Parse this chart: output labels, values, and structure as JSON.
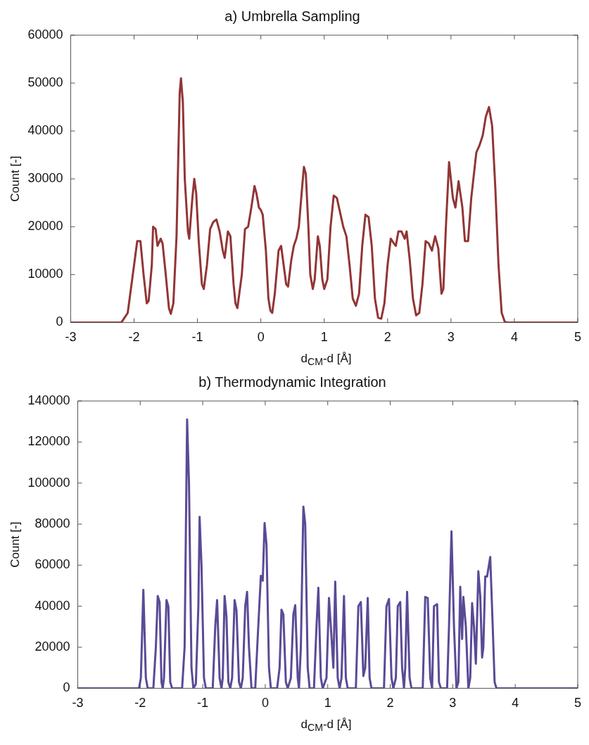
{
  "chart_data": [
    {
      "type": "line",
      "title": "a) Umbrella Sampling",
      "xlabel": "d$_{CM}$-d [Å]",
      "ylabel": "Count [-]",
      "xlim": [
        -3,
        5
      ],
      "xticks": [
        -3,
        -2,
        -1,
        0,
        1,
        2,
        3,
        4,
        5
      ],
      "ylim": [
        0,
        60000
      ],
      "yticks": [
        0,
        10000,
        20000,
        30000,
        40000,
        50000,
        60000
      ],
      "series": [
        {
          "color": "#923535",
          "x": [
            -3,
            -2.2,
            -2.1,
            -2.0,
            -1.95,
            -1.9,
            -1.85,
            -1.8,
            -1.77,
            -1.72,
            -1.7,
            -1.66,
            -1.63,
            -1.58,
            -1.55,
            -1.5,
            -1.45,
            -1.42,
            -1.38,
            -1.33,
            -1.28,
            -1.26,
            -1.23,
            -1.2,
            -1.15,
            -1.13,
            -1.08,
            -1.05,
            -1.02,
            -0.98,
            -0.93,
            -0.9,
            -0.85,
            -0.8,
            -0.75,
            -0.7,
            -0.65,
            -0.6,
            -0.57,
            -0.52,
            -0.48,
            -0.43,
            -0.4,
            -0.37,
            -0.3,
            -0.25,
            -0.2,
            -0.15,
            -0.1,
            -0.07,
            -0.03,
            0.0,
            0.03,
            0.08,
            0.12,
            0.15,
            0.18,
            0.22,
            0.28,
            0.32,
            0.37,
            0.4,
            0.43,
            0.48,
            0.52,
            0.56,
            0.6,
            0.65,
            0.68,
            0.71,
            0.75,
            0.78,
            0.82,
            0.85,
            0.9,
            0.93,
            0.97,
            1.0,
            1.05,
            1.1,
            1.15,
            1.2,
            1.25,
            1.3,
            1.35,
            1.4,
            1.45,
            1.5,
            1.55,
            1.6,
            1.65,
            1.7,
            1.75,
            1.8,
            1.85,
            1.9,
            1.95,
            2.0,
            2.05,
            2.1,
            2.13,
            2.17,
            2.22,
            2.27,
            2.3,
            2.35,
            2.4,
            2.45,
            2.5,
            2.55,
            2.6,
            2.65,
            2.7,
            2.75,
            2.8,
            2.85,
            2.88,
            2.92,
            2.97,
            3.03,
            3.07,
            3.12,
            3.18,
            3.22,
            3.27,
            3.32,
            3.4,
            3.45,
            3.5,
            3.55,
            3.6,
            3.65,
            3.7,
            3.75,
            3.8,
            3.85,
            3.9,
            5
          ],
          "values": [
            0,
            0,
            2000,
            12000,
            17000,
            17000,
            10000,
            4000,
            4500,
            12000,
            20000,
            19500,
            16000,
            17500,
            16500,
            10000,
            3000,
            1800,
            4000,
            18000,
            48000,
            51000,
            46000,
            30000,
            19000,
            17500,
            26000,
            30000,
            27000,
            17000,
            8000,
            7000,
            12000,
            19500,
            21000,
            21500,
            19000,
            15000,
            13500,
            19000,
            18000,
            8000,
            4000,
            3000,
            10000,
            19500,
            20000,
            24000,
            28500,
            27000,
            24000,
            23500,
            22500,
            15000,
            5000,
            2500,
            2000,
            6000,
            15000,
            16000,
            11000,
            8000,
            7500,
            13000,
            16000,
            17500,
            20000,
            28000,
            32500,
            31000,
            20000,
            10000,
            7000,
            9000,
            18000,
            16000,
            9000,
            7000,
            9000,
            20000,
            26500,
            26000,
            23000,
            20000,
            18000,
            12000,
            5000,
            3500,
            6000,
            16000,
            22500,
            22000,
            16000,
            5000,
            1000,
            800,
            4000,
            12000,
            17500,
            16500,
            16000,
            19000,
            19000,
            17500,
            19000,
            13000,
            5000,
            1500,
            2000,
            8000,
            17000,
            16500,
            15000,
            18000,
            15500,
            6000,
            7000,
            20000,
            33500,
            26000,
            24000,
            29500,
            24000,
            17000,
            17000,
            26000,
            35500,
            37000,
            39000,
            43000,
            45000,
            41000,
            28000,
            12000,
            2000,
            100,
            0,
            0
          ]
        }
      ]
    },
    {
      "type": "line",
      "title": "b) Thermodynamic Integration",
      "xlabel": "d$_{CM}$-d [Å]",
      "ylabel": "Count [-]",
      "xlim": [
        -3,
        5
      ],
      "xticks": [
        -3,
        -2,
        -1,
        0,
        1,
        2,
        3,
        4,
        5
      ],
      "ylim": [
        0,
        140000
      ],
      "yticks": [
        0,
        20000,
        40000,
        60000,
        80000,
        100000,
        120000,
        140000
      ],
      "series": [
        {
          "color": "#5b4a96",
          "x": [
            -3,
            -2.02,
            -1.99,
            -1.95,
            -1.91,
            -1.88,
            -1.79,
            -1.75,
            -1.72,
            -1.69,
            -1.66,
            -1.64,
            -1.62,
            -1.58,
            -1.55,
            -1.52,
            -1.49,
            -1.33,
            -1.29,
            -1.25,
            -1.22,
            -1.18,
            -1.15,
            -1.11,
            -1.07,
            -1.05,
            -1.02,
            -0.98,
            -0.95,
            -0.84,
            -0.8,
            -0.77,
            -0.73,
            -0.7,
            -0.68,
            -0.65,
            -0.62,
            -0.59,
            -0.56,
            -0.53,
            -0.49,
            -0.46,
            -0.42,
            -0.39,
            -0.36,
            -0.32,
            -0.29,
            -0.26,
            -0.22,
            -0.16,
            -0.12,
            -0.07,
            -0.04,
            -0.01,
            0.02,
            0.06,
            0.09,
            0.19,
            0.23,
            0.26,
            0.29,
            0.33,
            0.36,
            0.41,
            0.45,
            0.48,
            0.52,
            0.54,
            0.57,
            0.61,
            0.64,
            0.68,
            0.71,
            0.78,
            0.82,
            0.85,
            0.89,
            0.92,
            0.98,
            1.02,
            1.05,
            1.09,
            1.12,
            1.16,
            1.19,
            1.22,
            1.26,
            1.29,
            1.32,
            1.45,
            1.49,
            1.53,
            1.57,
            1.6,
            1.64,
            1.67,
            1.7,
            1.9,
            1.94,
            1.98,
            2.02,
            2.05,
            2.09,
            2.12,
            2.16,
            2.19,
            2.22,
            2.24,
            2.27,
            2.31,
            2.34,
            2.52,
            2.56,
            2.6,
            2.64,
            2.67,
            2.7,
            2.75,
            2.78,
            2.81,
            2.91,
            2.94,
            2.98,
            3.02,
            3.06,
            3.09,
            3.12,
            3.15,
            3.17,
            3.21,
            3.25,
            3.28,
            3.31,
            3.34,
            3.37,
            3.41,
            3.44,
            3.47,
            3.49,
            3.52,
            3.55,
            3.6,
            3.64,
            3.67,
            3.7,
            5
          ],
          "values": [
            0,
            0,
            5000,
            48000,
            5000,
            0,
            0,
            20000,
            45000,
            42000,
            3000,
            0,
            5000,
            43000,
            40000,
            3000,
            0,
            0,
            20000,
            131000,
            100000,
            10000,
            0,
            2000,
            40000,
            83500,
            60000,
            5000,
            0,
            0,
            30000,
            43000,
            5000,
            0,
            5000,
            45000,
            35000,
            3000,
            0,
            5000,
            43000,
            38000,
            3000,
            0,
            5000,
            40000,
            47000,
            20000,
            0,
            0,
            25000,
            54800,
            52400,
            80500,
            70000,
            10000,
            0,
            0,
            10000,
            38300,
            36000,
            3000,
            0,
            5000,
            36000,
            40500,
            5000,
            0,
            20000,
            88500,
            80000,
            10000,
            0,
            0,
            30000,
            49000,
            5000,
            0,
            5000,
            44000,
            30000,
            10000,
            52000,
            5000,
            0,
            5000,
            45000,
            5000,
            0,
            0,
            40000,
            42000,
            6000,
            10000,
            44000,
            5000,
            0,
            0,
            40000,
            43500,
            5000,
            0,
            5000,
            40000,
            42000,
            10000,
            0,
            10000,
            47000,
            5000,
            0,
            0,
            44500,
            44000,
            5000,
            0,
            40000,
            41000,
            3000,
            0,
            0,
            30000,
            76500,
            30000,
            0,
            3000,
            49500,
            24000,
            44500,
            30000,
            0,
            5000,
            41500,
            30000,
            12000,
            57000,
            45000,
            15000,
            20000,
            54500,
            54500,
            64000,
            30000,
            3000,
            0,
            0
          ]
        }
      ]
    }
  ]
}
